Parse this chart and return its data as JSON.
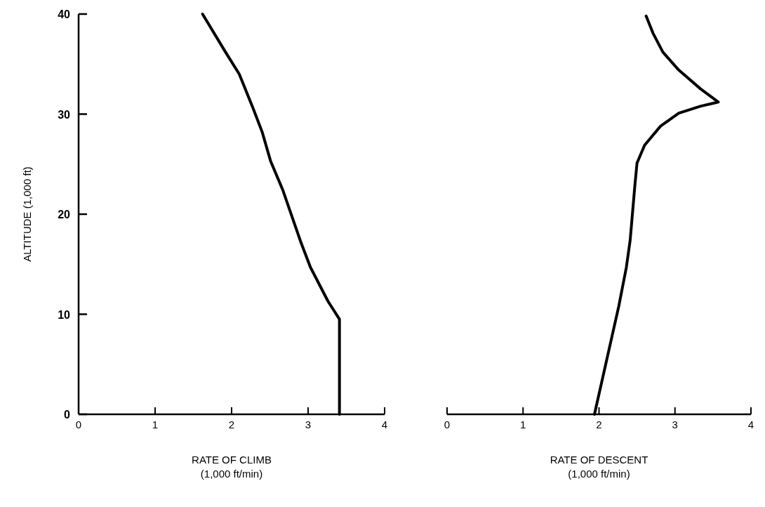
{
  "chart_data": [
    {
      "type": "line",
      "ylabel": "ALTITUDE (1,000 ft)",
      "xlabel": "RATE OF CLIMB\n(1,000 ft/min)",
      "xlim": [
        0,
        4
      ],
      "xticks": [
        0,
        1,
        2,
        3,
        4
      ],
      "ylim": [
        0,
        40
      ],
      "yticks": [
        0,
        10,
        20,
        30,
        40
      ],
      "grid": false,
      "marker": "none",
      "line_style": "solid",
      "series": [
        {
          "color": "#000000",
          "x": [
            1.62,
            1.92,
            2.1,
            2.28,
            2.4,
            2.51,
            2.67,
            2.91,
            3.03,
            3.26,
            3.41,
            3.41
          ],
          "values": [
            40,
            36.2,
            34,
            30.6,
            28.2,
            25.3,
            22.4,
            17.1,
            14.7,
            11.3,
            9.5,
            0
          ]
        }
      ]
    },
    {
      "type": "line",
      "xlabel": "RATE OF DESCENT\n(1,000 ft/min)",
      "xlim": [
        0,
        4
      ],
      "xticks": [
        0,
        1,
        2,
        3,
        4
      ],
      "ylim": [
        0,
        40
      ],
      "tick_labels": "x",
      "grid": false,
      "marker": "none",
      "line_style": "solid",
      "series": [
        {
          "color": "#000000",
          "x": [
            2.62,
            2.71,
            2.84,
            3.05,
            3.34,
            3.57,
            3.34,
            3.05,
            2.81,
            2.6,
            2.5,
            2.47,
            2.41,
            2.36,
            2.26,
            1.94
          ],
          "values": [
            39.8,
            38.1,
            36.2,
            34.4,
            32.5,
            31.2,
            30.8,
            30.1,
            28.8,
            26.9,
            25.1,
            22.7,
            17.4,
            14.7,
            10.8,
            0
          ]
        }
      ]
    }
  ]
}
